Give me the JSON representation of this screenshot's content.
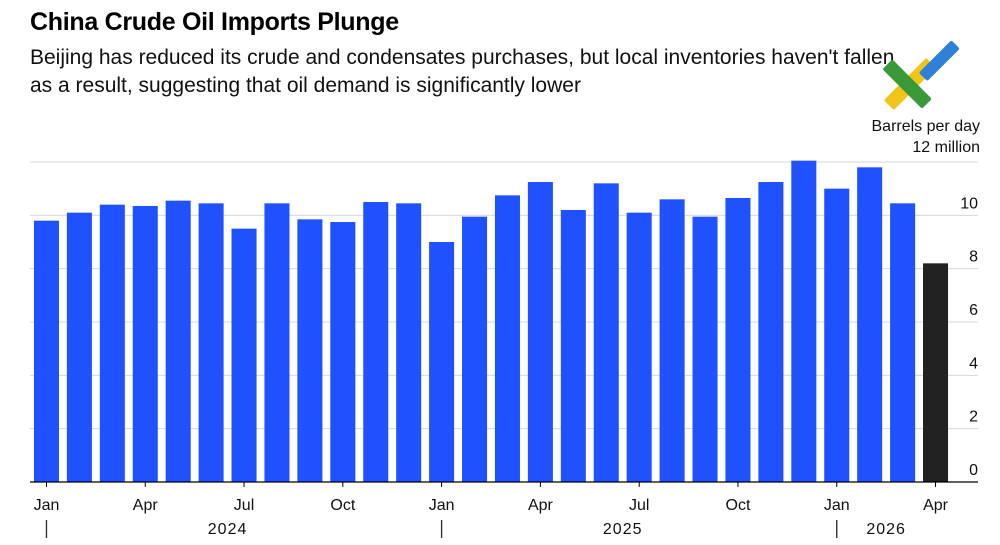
{
  "header": {
    "title": "China Crude Oil Imports Plunge",
    "subtitle": "Beijing has reduced its crude and condensates purchases, but local inventories haven't fallen as a result, suggesting that oil demand is significantly lower",
    "unit_line1": "Barrels per day",
    "unit_line2": "12 million"
  },
  "colors": {
    "bar": "#1f51ff",
    "latest_bar": "#222222",
    "grid": "#d7d7d7",
    "logo_green": "#3a9a3a",
    "logo_blue": "#2f80d9",
    "logo_yellow": "#f0c419"
  },
  "logo_icon": "trade-logo-icon",
  "chart_data": {
    "type": "bar",
    "categories": [
      "2024-01",
      "2024-02",
      "2024-03",
      "2024-04",
      "2024-05",
      "2024-06",
      "2024-07",
      "2024-08",
      "2024-09",
      "2024-10",
      "2024-11",
      "2024-12",
      "2025-01",
      "2025-02",
      "2025-03",
      "2025-04",
      "2025-05",
      "2025-06",
      "2025-07",
      "2025-08",
      "2025-09",
      "2025-10",
      "2025-11",
      "2025-12",
      "2026-01",
      "2026-02",
      "2026-03",
      "2026-04"
    ],
    "values": [
      9.8,
      10.1,
      10.4,
      10.35,
      10.55,
      10.45,
      9.5,
      10.45,
      9.85,
      9.75,
      10.5,
      10.45,
      9.0,
      9.95,
      10.75,
      11.25,
      10.2,
      11.2,
      10.1,
      10.6,
      9.95,
      10.65,
      11.25,
      12.05,
      11.0,
      11.8,
      10.45,
      8.2
    ],
    "highlight_index": 27,
    "ylim": [
      0,
      12
    ],
    "y_ticks": [
      0,
      2,
      4,
      6,
      8,
      10
    ],
    "x_tick_labels": [
      {
        "index": 0,
        "label": "Jan"
      },
      {
        "index": 3,
        "label": "Apr"
      },
      {
        "index": 6,
        "label": "Jul"
      },
      {
        "index": 9,
        "label": "Oct"
      },
      {
        "index": 12,
        "label": "Jan"
      },
      {
        "index": 15,
        "label": "Apr"
      },
      {
        "index": 18,
        "label": "Jul"
      },
      {
        "index": 21,
        "label": "Oct"
      },
      {
        "index": 24,
        "label": "Jan"
      },
      {
        "index": 27,
        "label": "Apr"
      }
    ],
    "year_labels": [
      {
        "label": "2024",
        "start_index": 0,
        "end_index": 11
      },
      {
        "label": "2025",
        "start_index": 12,
        "end_index": 23
      },
      {
        "label": "2026",
        "start_index": 24,
        "end_index": 27
      }
    ],
    "grid": true
  }
}
